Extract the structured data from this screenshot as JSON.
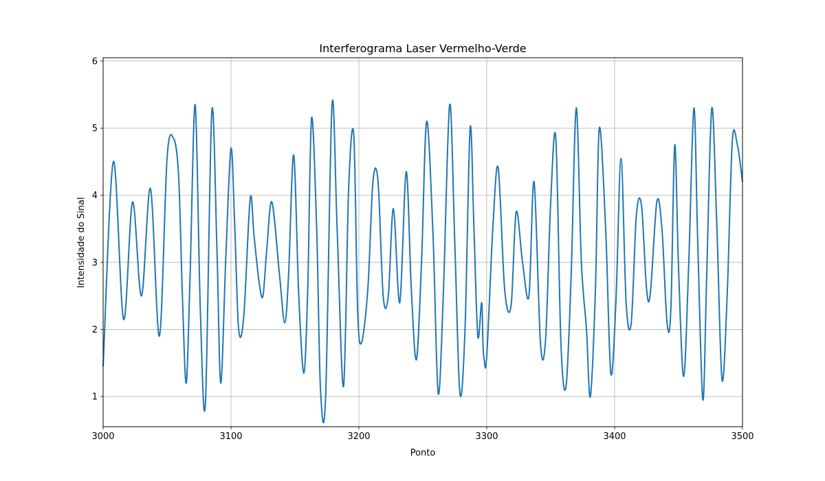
{
  "chart_data": {
    "type": "line",
    "title": "Interferograma Laser Vermelho-Verde",
    "xlabel": "Ponto",
    "ylabel": "Intensidade do Sinal",
    "xlim": [
      3000,
      3500
    ],
    "ylim": [
      0.55,
      6.05
    ],
    "x_ticks": [
      3000,
      3100,
      3200,
      3300,
      3400,
      3500
    ],
    "x_tick_labels": [
      "3000",
      "3100",
      "3200",
      "3300",
      "3400",
      "3500"
    ],
    "y_ticks": [
      1,
      2,
      3,
      4,
      5,
      6
    ],
    "y_tick_labels": [
      "1",
      "2",
      "3",
      "4",
      "5",
      "6"
    ],
    "grid": true,
    "line_color": "#1f77b4",
    "series": [
      {
        "x": [
          3000,
          3008,
          3016,
          3023,
          3030,
          3037,
          3044,
          3050,
          3055,
          3059,
          3062,
          3065,
          3068,
          3072,
          3076,
          3080,
          3085,
          3089,
          3092,
          3096,
          3100,
          3103,
          3106,
          3110,
          3115,
          3118,
          3122,
          3125,
          3128,
          3132,
          3138,
          3142,
          3145,
          3149,
          3153,
          3157,
          3160,
          3163,
          3167,
          3170,
          3174,
          3179,
          3183,
          3188,
          3192,
          3196,
          3199,
          3202,
          3207,
          3211,
          3215,
          3219,
          3223,
          3227,
          3232,
          3237,
          3241,
          3245,
          3249,
          3253,
          3258,
          3262,
          3266,
          3271,
          3275,
          3279,
          3283,
          3287,
          3290,
          3293,
          3296,
          3297,
          3298,
          3300,
          3305,
          3309,
          3314,
          3319,
          3323,
          3328,
          3333,
          3337,
          3342,
          3346,
          3350,
          3354,
          3358,
          3362,
          3366,
          3370,
          3374,
          3378,
          3381,
          3385,
          3388,
          3393,
          3397,
          3401,
          3405,
          3409,
          3413,
          3417,
          3421,
          3425,
          3428,
          3433,
          3437,
          3441,
          3444,
          3447,
          3450,
          3454,
          3458,
          3462,
          3465,
          3469,
          3472,
          3476,
          3480,
          3484,
          3488,
          3492,
          3496,
          3500
        ],
        "y": [
          1.45,
          4.5,
          2.15,
          3.9,
          2.5,
          4.1,
          1.9,
          4.55,
          4.85,
          4.3,
          2.5,
          1.2,
          2.8,
          5.35,
          2.3,
          0.9,
          5.25,
          3.2,
          1.2,
          3.1,
          4.7,
          3.5,
          2.0,
          2.2,
          3.95,
          3.4,
          2.7,
          2.5,
          3.2,
          3.9,
          2.8,
          2.1,
          2.8,
          4.6,
          2.5,
          1.35,
          2.6,
          5.15,
          3.5,
          1.1,
          1.0,
          5.35,
          3.5,
          1.15,
          4.1,
          4.9,
          2.3,
          1.8,
          2.6,
          4.2,
          4.2,
          2.5,
          2.5,
          3.8,
          2.4,
          4.35,
          2.6,
          1.55,
          3.0,
          5.1,
          3.4,
          1.05,
          2.5,
          5.35,
          3.3,
          1.05,
          2.0,
          5.0,
          3.5,
          1.9,
          2.4,
          1.8,
          1.55,
          1.6,
          3.6,
          4.4,
          2.6,
          2.35,
          3.75,
          3.0,
          2.5,
          4.2,
          1.8,
          1.85,
          3.9,
          4.85,
          1.8,
          1.15,
          2.8,
          5.3,
          3.0,
          2.0,
          1.0,
          2.6,
          5.0,
          3.5,
          1.35,
          2.4,
          4.55,
          2.4,
          2.1,
          3.7,
          3.85,
          2.6,
          2.55,
          3.9,
          3.5,
          2.1,
          2.3,
          4.75,
          2.9,
          1.3,
          3.0,
          5.3,
          3.3,
          0.95,
          2.8,
          5.3,
          3.5,
          1.25,
          2.5,
          4.8,
          4.75,
          4.2
        ]
      }
    ]
  }
}
